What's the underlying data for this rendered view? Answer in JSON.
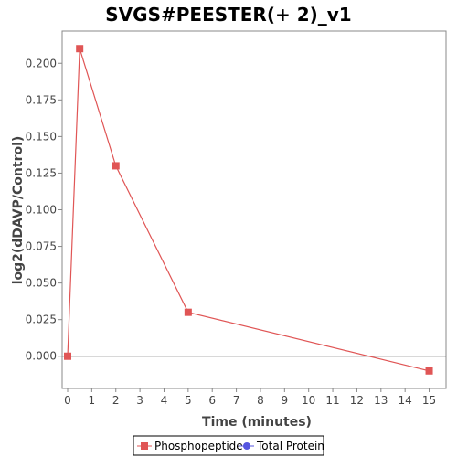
{
  "chart_data": {
    "type": "line",
    "title": "SVGS#PEESTER(+ 2)_v1",
    "xlabel": "Time (minutes)",
    "ylabel": "log2(dDAVP/Control)",
    "xlim": [
      0,
      15.7
    ],
    "ylim": [
      -0.022,
      0.222
    ],
    "x_ticks": [
      0,
      1,
      2,
      3,
      4,
      5,
      6,
      7,
      8,
      9,
      10,
      11,
      12,
      13,
      14,
      15
    ],
    "y_ticks": [
      0.0,
      0.025,
      0.05,
      0.075,
      0.1,
      0.125,
      0.15,
      0.175,
      0.2
    ],
    "y_tick_labels": [
      "0.000",
      "0.025",
      "0.050",
      "0.075",
      "0.100",
      "0.125",
      "0.150",
      "0.175",
      "0.200"
    ],
    "zero_line": true,
    "grid": false,
    "legend_position": "bottom",
    "series": [
      {
        "name": "Phosphopeptide",
        "color": "#e05555",
        "marker": "square",
        "x": [
          0,
          0.5,
          2,
          5,
          15
        ],
        "y": [
          0.0,
          0.21,
          0.13,
          0.03,
          -0.01
        ]
      },
      {
        "name": "Total Protein",
        "color": "#5555e0",
        "marker": "circle",
        "x": [],
        "y": []
      }
    ]
  }
}
